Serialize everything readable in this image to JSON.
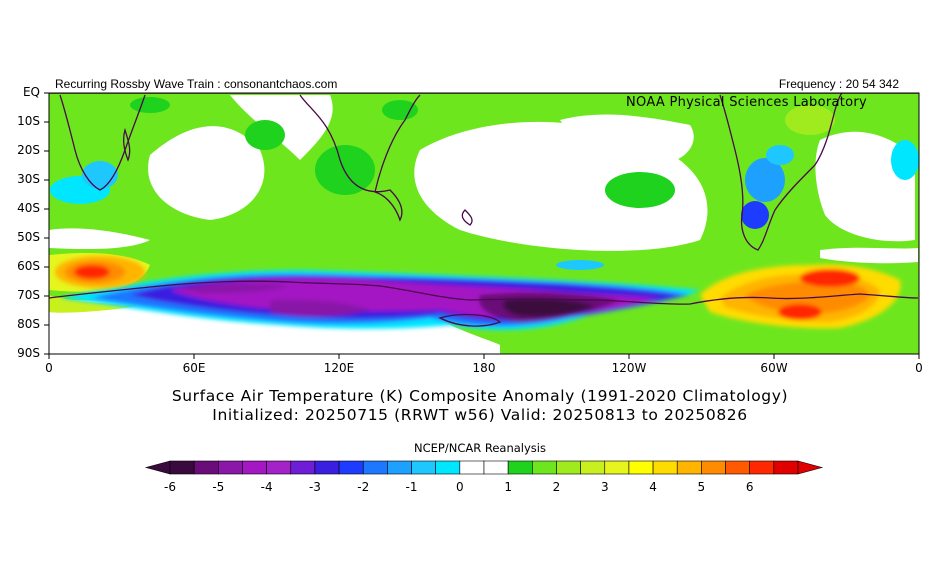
{
  "header": {
    "left_text": "Recurring Rossby Wave Train : consonantchaos.com",
    "right_text": "Frequency : 20 54 342",
    "organization": "NOAA Physical Sciences Laboratory"
  },
  "map": {
    "projection": "latitude-longitude, Southern Hemisphere",
    "lat_labels": [
      "EQ",
      "10S",
      "20S",
      "30S",
      "40S",
      "50S",
      "60S",
      "70S",
      "80S",
      "90S"
    ],
    "lon_labels": [
      "0",
      "60E",
      "120E",
      "180",
      "120W",
      "60W",
      "0"
    ],
    "anomaly_features": [
      {
        "region": "Southern Ocean near 20E, 60-65S",
        "sign": "warm",
        "peak_K": 4.5
      },
      {
        "region": "Antarctic coast 30E-70E",
        "sign": "cold",
        "peak_K": -3.5
      },
      {
        "region": "East Antarctica 90E-140E",
        "sign": "cold",
        "peak_K": -3
      },
      {
        "region": "Ross Sea / West Antarctica 170E-160W",
        "sign": "cold",
        "peak_K": -6
      },
      {
        "region": "Antarctic Peninsula / Weddell Sea 80W-20W",
        "sign": "warm",
        "peak_K": 5.5
      },
      {
        "region": "Southern South America",
        "sign": "cold",
        "peak_K": -3
      },
      {
        "region": "Southern Africa",
        "sign": "cold",
        "peak_K": -1.5
      }
    ]
  },
  "title": {
    "line1": "Surface Air Temperature (K) Composite Anomaly (1991-2020 Climatology)",
    "line2": "Initialized: 20250715 (RRWT w56) Valid: 20250813 to 20250826"
  },
  "data_source": "NCEP/NCAR Reanalysis",
  "colorbar": {
    "labels": [
      "-6",
      "-5",
      "-4",
      "-3",
      "-2",
      "-1",
      "0",
      "1",
      "2",
      "3",
      "4",
      "5",
      "6"
    ],
    "colors": [
      "#3a0a3e",
      "#6a0d78",
      "#8a17a8",
      "#a418c4",
      "#a423c8",
      "#6d1ed6",
      "#3a1fe0",
      "#1e3cff",
      "#1e78ff",
      "#1ea0ff",
      "#1ec8ff",
      "#00e6ff",
      "#ffffff",
      "#ffffff",
      "#1ed21e",
      "#6ee61e",
      "#a0eb1e",
      "#c8f01e",
      "#e6f51e",
      "#ffff00",
      "#ffdc00",
      "#ffb400",
      "#ff8c00",
      "#ff5a00",
      "#ff2800",
      "#e10000"
    ]
  }
}
